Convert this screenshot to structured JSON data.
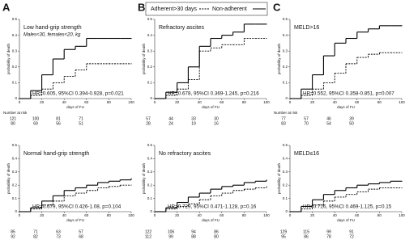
{
  "legend": [
    {
      "name": "Adherent>30 days",
      "color": "#000000",
      "dash": true
    },
    {
      "name": "Non-adherent",
      "color": "#000000",
      "dash": false
    }
  ],
  "chart_data": [
    {
      "type": "line",
      "step": true,
      "letter": "A",
      "annotations": [
        "Low hand-grip strength",
        "Males<30, females<20, kg"
      ],
      "hr": "HR=0.605, 95%CI 0.394-0.928, p=0.021",
      "xlabel": "days of FU",
      "ylabel": "probability of death",
      "xlim": [
        0,
        100
      ],
      "xticks": [
        0,
        20,
        40,
        60,
        80,
        100
      ],
      "ylim": [
        0,
        0.5
      ],
      "yticks": [
        0,
        0.1,
        0.2,
        0.3,
        0.4,
        0.5
      ],
      "x": [
        0,
        10,
        20,
        30,
        40,
        50,
        60,
        70,
        80,
        90,
        100
      ],
      "series": [
        {
          "color": "#000000",
          "dash": false,
          "values": [
            0,
            0.05,
            0.15,
            0.25,
            0.31,
            0.33,
            0.38,
            0.38,
            0.38,
            0.38,
            0.38
          ]
        },
        {
          "color": "#000000",
          "dash": true,
          "values": [
            0,
            0.02,
            0.06,
            0.1,
            0.14,
            0.18,
            0.22,
            0.22,
            0.22,
            0.22,
            0.22
          ]
        }
      ],
      "risk_table": {
        "title": "Number at risk",
        "rows": [
          [
            121,
            100,
            81,
            71
          ],
          [
            80,
            69,
            56,
            51
          ]
        ]
      }
    },
    {
      "type": "line",
      "step": true,
      "letter": "B",
      "annotations": [
        "Refractory ascites"
      ],
      "hr": "HR=0.678, 95%CI 0.369-1.245, p=0.216",
      "xlabel": "days of FU",
      "ylabel": "probability of death",
      "xlim": [
        0,
        100
      ],
      "xticks": [
        0,
        20,
        40,
        60,
        80,
        100
      ],
      "ylim": [
        0,
        0.5
      ],
      "yticks": [
        0,
        0.1,
        0.2,
        0.3,
        0.4,
        0.5
      ],
      "x": [
        0,
        10,
        20,
        30,
        40,
        50,
        60,
        70,
        80,
        90,
        100
      ],
      "series": [
        {
          "color": "#000000",
          "dash": false,
          "values": [
            0,
            0.04,
            0.1,
            0.2,
            0.33,
            0.38,
            0.4,
            0.42,
            0.47,
            0.47,
            0.47
          ]
        },
        {
          "color": "#000000",
          "dash": true,
          "values": [
            0,
            0.02,
            0.06,
            0.12,
            0.3,
            0.32,
            0.34,
            0.34,
            0.38,
            0.38,
            0.38
          ]
        }
      ],
      "risk_table": {
        "rows": [
          [
            57,
            44,
            33,
            30
          ],
          [
            28,
            24,
            19,
            16
          ]
        ]
      }
    },
    {
      "type": "line",
      "step": true,
      "letter": "C",
      "annotations": [
        "MELD>16"
      ],
      "hr": "HR=0.552, 95%CI 0.358-0.851, p=0.007",
      "xlabel": "days of FU",
      "ylabel": "probability of death",
      "xlim": [
        0,
        100
      ],
      "xticks": [
        0,
        20,
        40,
        60,
        80,
        100
      ],
      "ylim": [
        0,
        0.5
      ],
      "yticks": [
        0,
        0.1,
        0.2,
        0.3,
        0.4,
        0.5
      ],
      "x": [
        0,
        10,
        20,
        30,
        40,
        50,
        60,
        70,
        80,
        90,
        100
      ],
      "series": [
        {
          "color": "#000000",
          "dash": false,
          "values": [
            0,
            0.06,
            0.15,
            0.27,
            0.35,
            0.38,
            0.42,
            0.44,
            0.46,
            0.46,
            0.46
          ]
        },
        {
          "color": "#000000",
          "dash": true,
          "values": [
            0,
            0.02,
            0.06,
            0.1,
            0.16,
            0.22,
            0.26,
            0.28,
            0.29,
            0.29,
            0.29
          ]
        }
      ],
      "risk_table": {
        "title": "Number at risk",
        "rows": [
          [
            77,
            57,
            46,
            39
          ],
          [
            83,
            70,
            54,
            50
          ]
        ]
      }
    },
    {
      "type": "line",
      "step": true,
      "annotations": [
        "Normal hand-grip strength"
      ],
      "hr": "HR=0.679, 95%CI 0.426-1.08, p=0.104",
      "xlabel": "days of FU",
      "ylabel": "probability of death",
      "xlim": [
        0,
        100
      ],
      "xticks": [
        0,
        20,
        40,
        60,
        80,
        100
      ],
      "ylim": [
        0,
        0.5
      ],
      "yticks": [
        0,
        0.1,
        0.2,
        0.3,
        0.4,
        0.5
      ],
      "x": [
        0,
        10,
        20,
        30,
        40,
        50,
        60,
        70,
        80,
        90,
        100
      ],
      "series": [
        {
          "color": "#000000",
          "dash": false,
          "values": [
            0,
            0.03,
            0.08,
            0.12,
            0.16,
            0.18,
            0.2,
            0.22,
            0.23,
            0.24,
            0.25
          ]
        },
        {
          "color": "#000000",
          "dash": true,
          "values": [
            0,
            0.02,
            0.05,
            0.08,
            0.12,
            0.14,
            0.16,
            0.18,
            0.19,
            0.2,
            0.2
          ]
        }
      ],
      "risk_table": {
        "rows": [
          [
            85,
            71,
            63,
            57
          ],
          [
            92,
            82,
            73,
            68
          ]
        ]
      }
    },
    {
      "type": "line",
      "step": true,
      "annotations": [
        "No refractory ascites"
      ],
      "hr": "HR=0.729, 95%CI 0.471-1.128, p=0.16",
      "xlabel": "days of FU",
      "ylabel": "probability of death",
      "xlim": [
        0,
        100
      ],
      "xticks": [
        0,
        20,
        40,
        60,
        80,
        100
      ],
      "ylim": [
        0,
        0.5
      ],
      "yticks": [
        0,
        0.1,
        0.2,
        0.3,
        0.4,
        0.5
      ],
      "x": [
        0,
        10,
        20,
        30,
        40,
        50,
        60,
        70,
        80,
        90,
        100
      ],
      "series": [
        {
          "color": "#000000",
          "dash": false,
          "values": [
            0,
            0.03,
            0.07,
            0.11,
            0.14,
            0.17,
            0.19,
            0.2,
            0.22,
            0.23,
            0.24
          ]
        },
        {
          "color": "#000000",
          "dash": true,
          "values": [
            0,
            0.02,
            0.04,
            0.06,
            0.09,
            0.12,
            0.14,
            0.16,
            0.17,
            0.18,
            0.19
          ]
        }
      ],
      "risk_table": {
        "rows": [
          [
            122,
            106,
            94,
            86
          ],
          [
            112,
            99,
            88,
            80
          ]
        ]
      }
    },
    {
      "type": "line",
      "step": true,
      "annotations": [
        "MELD≤16"
      ],
      "hr": "HR=0.726, 95%CI 0.469-1.125, p=0.15",
      "xlabel": "days of FU",
      "ylabel": "probability of death",
      "xlim": [
        0,
        100
      ],
      "xticks": [
        0,
        20,
        40,
        60,
        80,
        100
      ],
      "ylim": [
        0,
        0.5
      ],
      "yticks": [
        0,
        0.1,
        0.2,
        0.3,
        0.4,
        0.5
      ],
      "x": [
        0,
        10,
        20,
        30,
        40,
        50,
        60,
        70,
        80,
        90,
        100
      ],
      "series": [
        {
          "color": "#000000",
          "dash": false,
          "values": [
            0,
            0.04,
            0.09,
            0.13,
            0.16,
            0.18,
            0.2,
            0.21,
            0.22,
            0.23,
            0.23
          ]
        },
        {
          "color": "#000000",
          "dash": true,
          "values": [
            0,
            0.02,
            0.05,
            0.08,
            0.11,
            0.13,
            0.15,
            0.17,
            0.18,
            0.18,
            0.18
          ]
        }
      ],
      "risk_table": {
        "rows": [
          [
            129,
            115,
            99,
            91
          ],
          [
            95,
            86,
            78,
            72
          ]
        ]
      }
    }
  ]
}
